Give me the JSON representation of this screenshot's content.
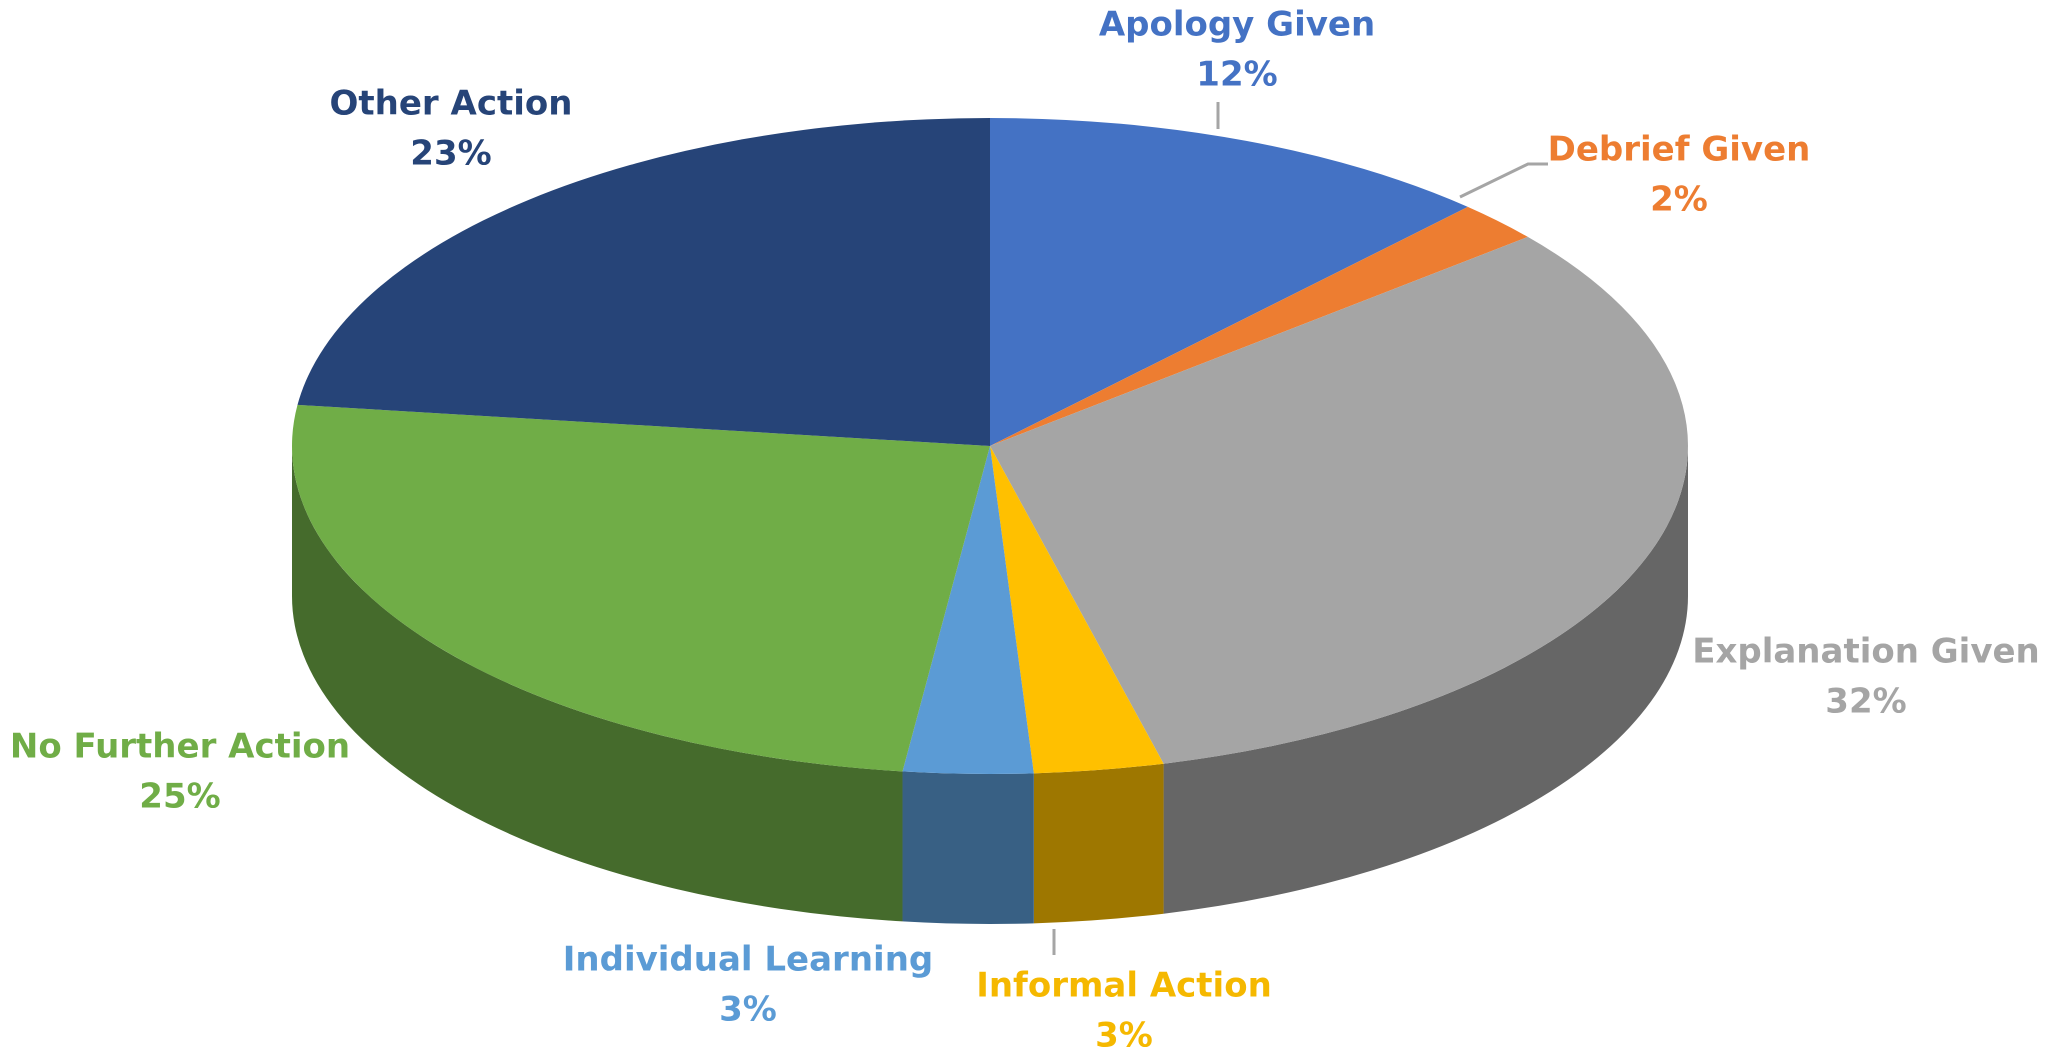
{
  "chart_data": {
    "type": "pie",
    "categories": [
      "Apology Given",
      "Debrief Given",
      "Explanation Given",
      "Informal Action",
      "Individual Learning",
      "No Further Action",
      "Other Action"
    ],
    "values": [
      12,
      2,
      32,
      3,
      3,
      25,
      23
    ],
    "value_labels": [
      "12%",
      "2%",
      "32%",
      "3%",
      "3%",
      "25%",
      "23%"
    ],
    "colors": [
      "#4472c4",
      "#ed7d31",
      "#a5a5a5",
      "#ffc000",
      "#5b9bd5",
      "#70ad47",
      "#264478"
    ]
  }
}
